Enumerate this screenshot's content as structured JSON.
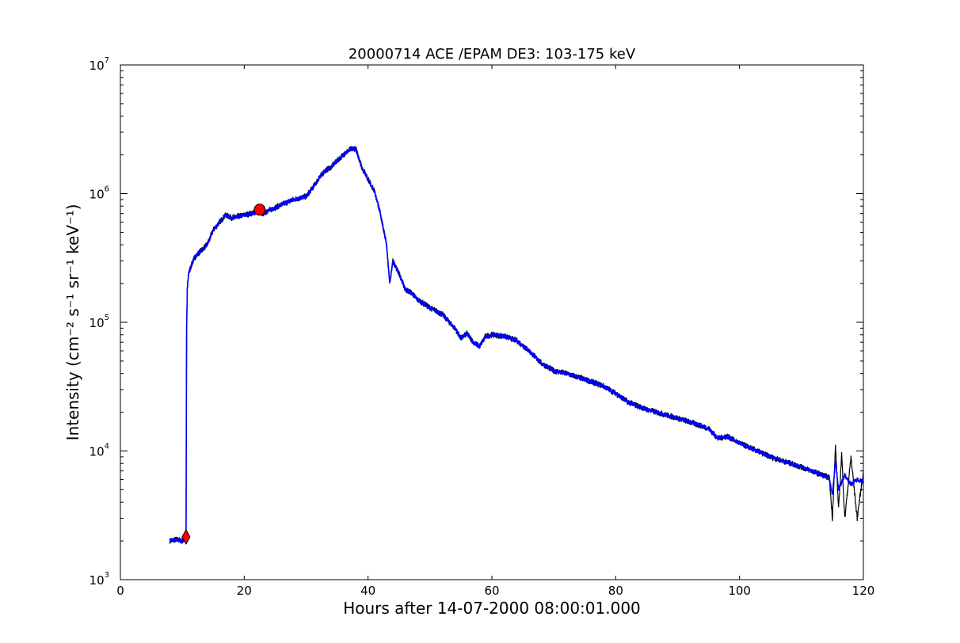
{
  "chart_data": {
    "type": "line",
    "title": "20000714 ACE /EPAM DE3: 103-175 keV",
    "xlabel": "Hours after 14-07-2000 08:00:01.000",
    "ylabel": "Intensity (cm⁻² s⁻¹ sr⁻¹ keV⁻¹)",
    "xlim": [
      0,
      120
    ],
    "ylim": [
      1000,
      10000000
    ],
    "yscale": "log",
    "grid": false,
    "x_ticks": [
      "0",
      "20",
      "40",
      "60",
      "80",
      "100",
      "120"
    ],
    "y_ticks": [
      {
        "base": "10",
        "exp": "3"
      },
      {
        "base": "10",
        "exp": "4"
      },
      {
        "base": "10",
        "exp": "5"
      },
      {
        "base": "10",
        "exp": "6"
      },
      {
        "base": "10",
        "exp": "7"
      }
    ],
    "colors": {
      "raw": "#000000",
      "smoothed": "#0000ff",
      "markers": "#ff0000"
    },
    "series": [
      {
        "style": "black raw data",
        "x": [
          8.0,
          9.0,
          10.0,
          10.6,
          10.7,
          10.8,
          11.0,
          11.5,
          12.0,
          13.0,
          14.0,
          15.0,
          16.0,
          17.0,
          18.0,
          20.0,
          22.0,
          23.0,
          24.0,
          26.0,
          28.0,
          30.0,
          31.0,
          32.0,
          33.0,
          34.0,
          35.0,
          36.0,
          37.0,
          38.0,
          39.0,
          40.0,
          41.0,
          42.0,
          43.0,
          43.5,
          44.0,
          45.0,
          46.0,
          47.0,
          48.0,
          50.0,
          52.0,
          54.0,
          55.0,
          56.0,
          57.0,
          58.0,
          59.0,
          60.0,
          62.0,
          64.0,
          66.0,
          68.0,
          70.0,
          72.0,
          75.0,
          78.0,
          80.0,
          82.0,
          85.0,
          90.0,
          95.0,
          96.5,
          98.0,
          100.0,
          105.0,
          110.0,
          114.5,
          115.0,
          115.5,
          116.0,
          116.5,
          117.0,
          118.0,
          119.0,
          120.0
        ],
        "values": [
          2000,
          2050,
          2000,
          2100,
          90000,
          180000,
          240000,
          280000,
          320000,
          360000,
          400000,
          520000,
          600000,
          680000,
          650000,
          680000,
          720000,
          700000,
          740000,
          820000,
          900000,
          950000,
          1100000,
          1300000,
          1500000,
          1600000,
          1800000,
          2000000,
          2200000,
          2250000,
          1600000,
          1300000,
          1050000,
          700000,
          400000,
          200000,
          300000,
          240000,
          180000,
          170000,
          150000,
          130000,
          115000,
          90000,
          75000,
          82000,
          70000,
          65000,
          78000,
          80000,
          78000,
          72000,
          60000,
          48000,
          42000,
          40000,
          36000,
          32000,
          28000,
          24000,
          21000,
          18000,
          15000,
          12500,
          13000,
          11500,
          9000,
          7500,
          6200,
          3000,
          11000,
          3500,
          9500,
          3000,
          9000,
          3000,
          7000
        ]
      },
      {
        "style": "blue smoothed data",
        "x": [
          8.0,
          9.0,
          10.0,
          10.6,
          10.7,
          10.8,
          11.0,
          11.5,
          12.0,
          13.0,
          14.0,
          15.0,
          16.0,
          17.0,
          18.0,
          20.0,
          22.0,
          23.0,
          24.0,
          26.0,
          28.0,
          30.0,
          31.0,
          32.0,
          33.0,
          34.0,
          35.0,
          36.0,
          37.0,
          38.0,
          39.0,
          40.0,
          41.0,
          42.0,
          43.0,
          43.5,
          44.0,
          45.0,
          46.0,
          47.0,
          48.0,
          50.0,
          52.0,
          54.0,
          55.0,
          56.0,
          57.0,
          58.0,
          59.0,
          60.0,
          62.0,
          64.0,
          66.0,
          68.0,
          70.0,
          72.0,
          75.0,
          78.0,
          80.0,
          82.0,
          85.0,
          90.0,
          95.0,
          96.5,
          98.0,
          100.0,
          105.0,
          110.0,
          114.5,
          115.0,
          115.5,
          116.0,
          117.0,
          118.0,
          119.0,
          120.0
        ],
        "values": [
          2000,
          2050,
          2000,
          2100,
          90000,
          180000,
          240000,
          280000,
          320000,
          360000,
          400000,
          520000,
          600000,
          680000,
          650000,
          680000,
          720000,
          700000,
          740000,
          820000,
          900000,
          950000,
          1100000,
          1300000,
          1500000,
          1600000,
          1800000,
          2000000,
          2200000,
          2250000,
          1600000,
          1300000,
          1050000,
          700000,
          400000,
          200000,
          300000,
          240000,
          180000,
          170000,
          150000,
          130000,
          115000,
          90000,
          75000,
          82000,
          70000,
          65000,
          78000,
          80000,
          78000,
          72000,
          60000,
          48000,
          42000,
          40000,
          36000,
          32000,
          28000,
          24000,
          21000,
          18000,
          15000,
          12500,
          13000,
          11500,
          9000,
          7500,
          6200,
          4500,
          8500,
          5000,
          6500,
          5500,
          6000,
          5800
        ]
      }
    ],
    "markers": [
      {
        "shape": "circle",
        "x": 22.5,
        "y": 750000
      },
      {
        "shape": "diamond",
        "x": 10.6,
        "y": 2150
      }
    ]
  }
}
